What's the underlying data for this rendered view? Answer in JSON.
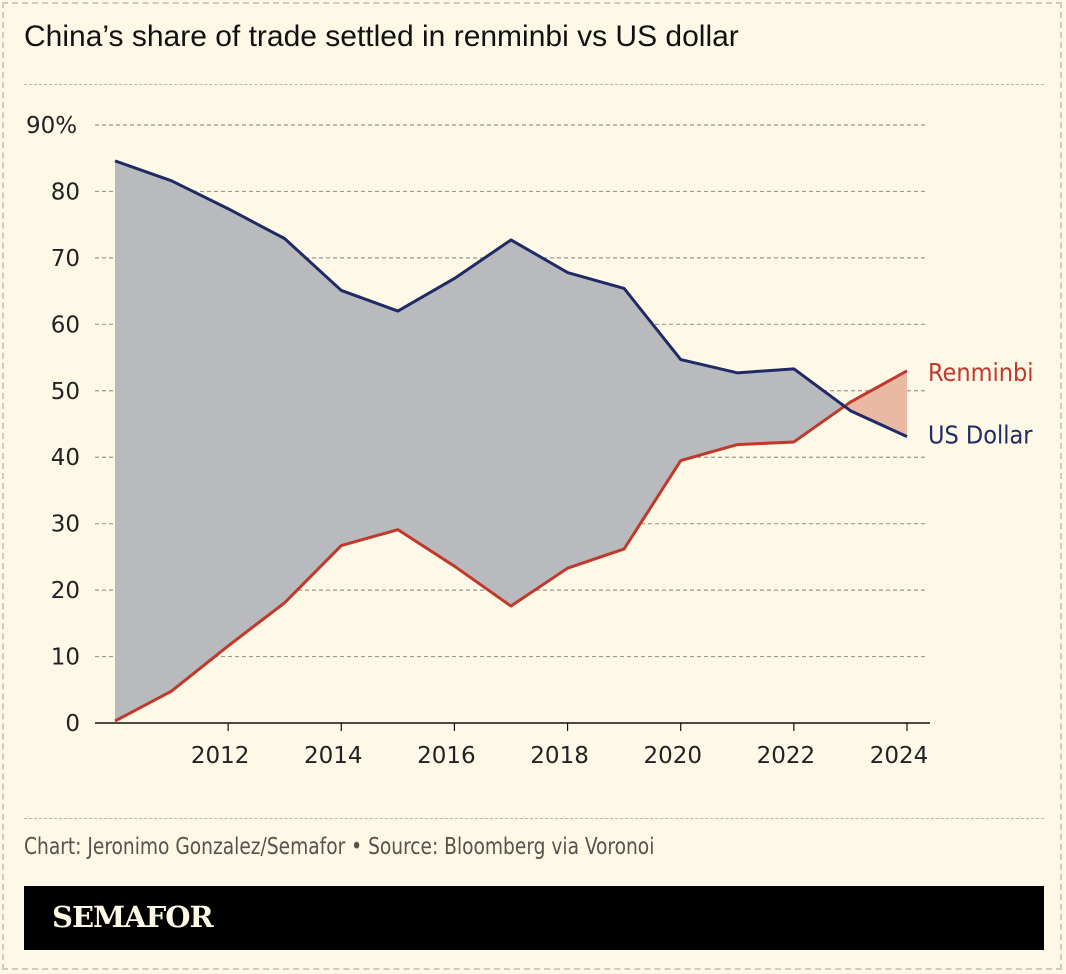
{
  "title": "China’s share of trade settled in renminbi vs US dollar",
  "source": "Chart: Jeronimo Gonzalez/Semafor • Source: Bloomberg via Voronoi",
  "brand": "SEMAFOR",
  "chart_data": {
    "type": "line",
    "title": "China’s share of trade settled in renminbi vs US dollar",
    "x": [
      2010,
      2011,
      2012,
      2013,
      2014,
      2015,
      2016,
      2017,
      2018,
      2019,
      2020,
      2021,
      2022,
      2023,
      2024
    ],
    "series": [
      {
        "name": "Renminbi",
        "color": "#c0392b",
        "values": [
          0.3,
          4.8,
          11.6,
          18.1,
          26.7,
          29.1,
          23.6,
          17.6,
          23.3,
          26.2,
          39.5,
          41.9,
          42.3,
          48.3,
          53.0
        ]
      },
      {
        "name": "US Dollar",
        "color": "#1f2a66",
        "values": [
          84.6,
          81.6,
          77.4,
          72.9,
          65.1,
          62.0,
          66.9,
          72.7,
          67.8,
          65.4,
          54.7,
          52.7,
          53.3,
          47.0,
          43.1
        ]
      }
    ],
    "fill_colors": {
      "dollar_above": "#b9babd",
      "renminbi_above": "#e9b9a4"
    },
    "xticks": [
      "2012",
      "2014",
      "2016",
      "2018",
      "2020",
      "2022",
      "2024"
    ],
    "yticks": [
      "0",
      "10",
      "20",
      "30",
      "40",
      "50",
      "60",
      "70",
      "80",
      "90%"
    ],
    "ylim": [
      0,
      90
    ],
    "grid": true,
    "legend": "direct labels at line ends"
  }
}
